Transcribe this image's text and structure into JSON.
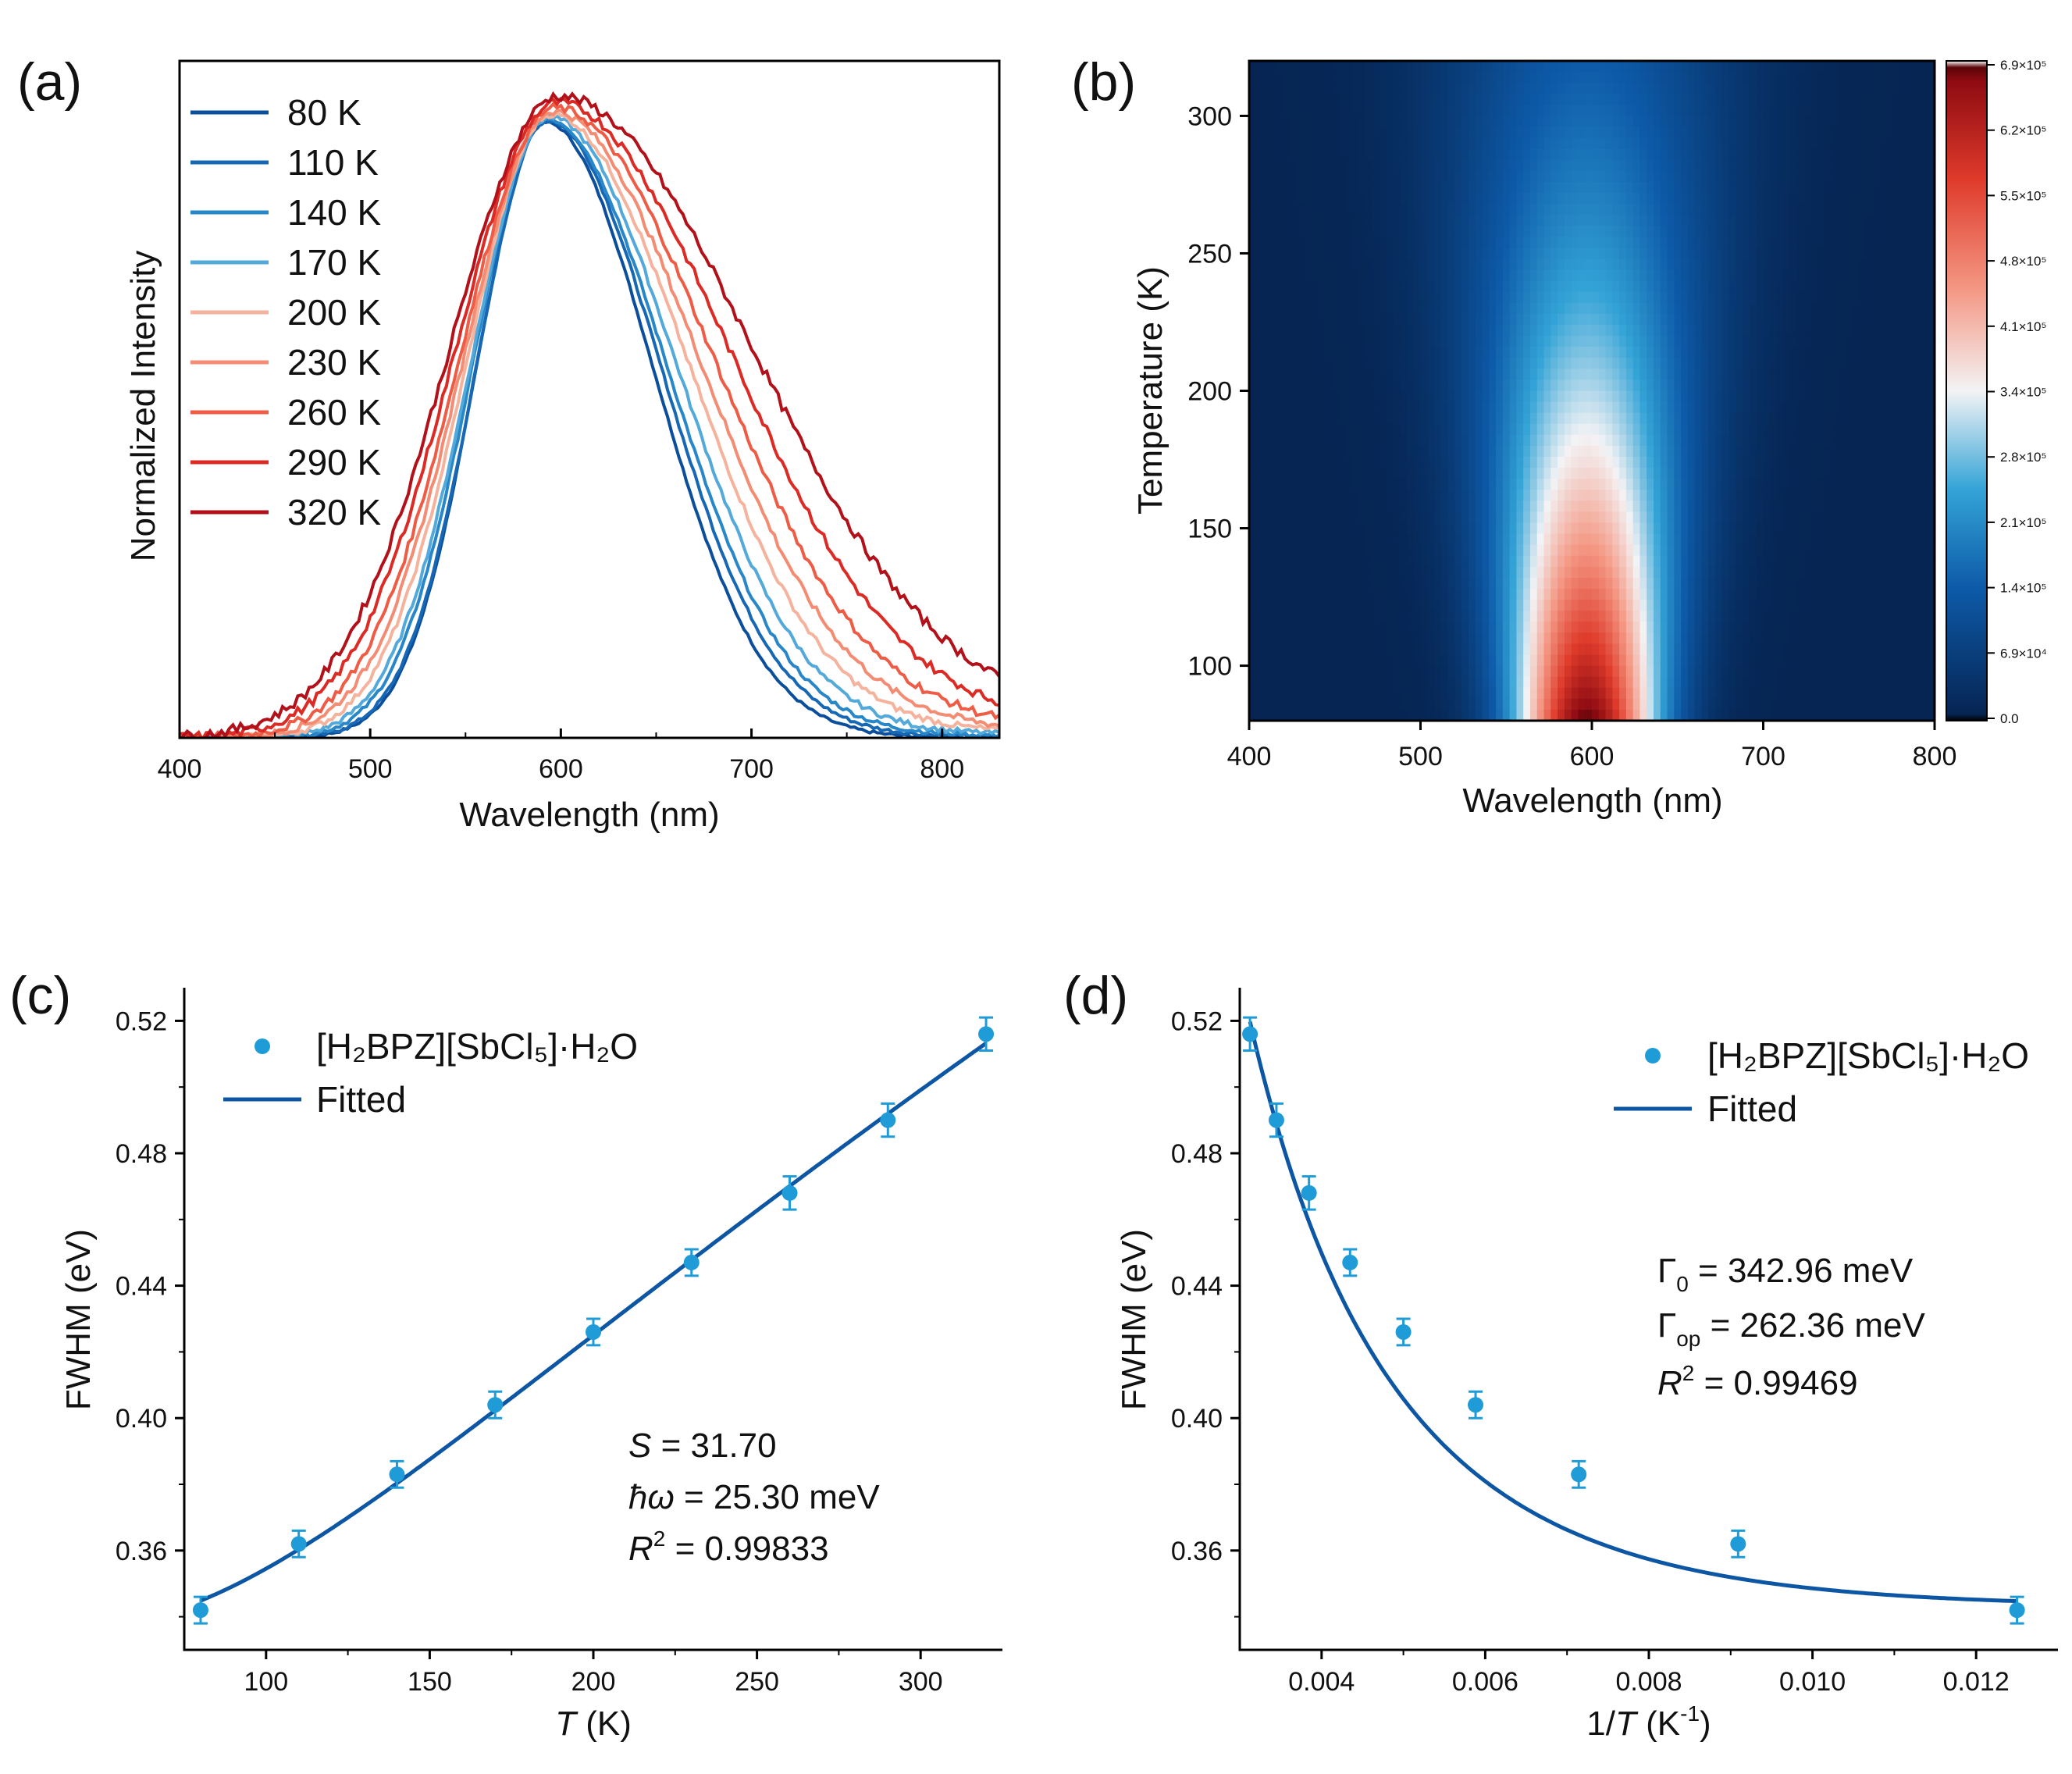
{
  "chart_data": [
    {
      "panel": "(a)",
      "type": "line",
      "title": "",
      "xlabel": "Wavelength (nm)",
      "ylabel": "Normalized Intensity",
      "xlim": [
        400,
        830
      ],
      "ylim": [
        0,
        1.1
      ],
      "xticks": [
        "400",
        "500",
        "600",
        "700",
        "800"
      ],
      "legend_position": "top-left",
      "series": [
        {
          "name": "80 K",
          "color": "#0b4f9c",
          "peak": 592,
          "wl": 36,
          "wr": 56,
          "tail": 0.0
        },
        {
          "name": "110 K",
          "color": "#1668b4",
          "peak": 593,
          "wl": 37,
          "wr": 59,
          "tail": 0.004
        },
        {
          "name": "140 K",
          "color": "#2887c8",
          "peak": 593,
          "wl": 39,
          "wr": 62,
          "tail": 0.008
        },
        {
          "name": "170 K",
          "color": "#52a9da",
          "peak": 594,
          "wl": 41,
          "wr": 66,
          "tail": 0.012
        },
        {
          "name": "200 K",
          "color": "#f5b39d",
          "peak": 595,
          "wl": 44,
          "wr": 71,
          "tail": 0.018
        },
        {
          "name": "230 K",
          "color": "#f48c73",
          "peak": 596,
          "wl": 47,
          "wr": 76,
          "tail": 0.025
        },
        {
          "name": "260 K",
          "color": "#ee5c45",
          "peak": 597,
          "wl": 50,
          "wr": 82,
          "tail": 0.033
        },
        {
          "name": "290 K",
          "color": "#dc2a24",
          "peak": 598,
          "wl": 54,
          "wr": 90,
          "tail": 0.045
        },
        {
          "name": "320 K",
          "color": "#b3111a",
          "peak": 599,
          "wl": 58,
          "wr": 100,
          "tail": 0.06
        }
      ]
    },
    {
      "panel": "(b)",
      "type": "heatmap",
      "xlabel": "Wavelength (nm)",
      "ylabel": "Temperature (K)",
      "xlim": [
        400,
        800
      ],
      "ylim": [
        80,
        320
      ],
      "xticks": [
        "400",
        "500",
        "600",
        "700",
        "800"
      ],
      "yticks": [
        "100",
        "150",
        "200",
        "250",
        "300"
      ],
      "colorbar_range": [
        0,
        690000
      ],
      "colorbar_ticks": [
        {
          "v": 0,
          "label": "0.0"
        },
        {
          "v": 69000,
          "label": "6.9×10⁴"
        },
        {
          "v": 138000,
          "label": "1.4×10⁵"
        },
        {
          "v": 207000,
          "label": "2.1×10⁵"
        },
        {
          "v": 276000,
          "label": "2.8×10⁵"
        },
        {
          "v": 345000,
          "label": "3.4×10⁵"
        },
        {
          "v": 414000,
          "label": "4.1×10⁵"
        },
        {
          "v": 483000,
          "label": "4.8×10⁵"
        },
        {
          "v": 552000,
          "label": "5.5×10⁵"
        },
        {
          "v": 621000,
          "label": "6.2×10⁵"
        },
        {
          "v": 690000,
          "label": "6.9×10⁵"
        }
      ],
      "peak_wavelength": 597,
      "max_intensity": 690000
    },
    {
      "panel": "(c)",
      "type": "scatter",
      "xlabel_var": "T",
      "xlabel_unit": " (K)",
      "ylabel": "FWHM (eV)",
      "xlim": [
        75,
        325
      ],
      "ylim": [
        0.33,
        0.53
      ],
      "xticks": [
        "100",
        "150",
        "200",
        "250",
        "300"
      ],
      "yticks": [
        "0.36",
        "0.40",
        "0.44",
        "0.48",
        "0.52"
      ],
      "x": [
        80,
        110,
        140,
        170,
        200,
        230,
        260,
        290,
        320
      ],
      "y": [
        0.342,
        0.362,
        0.383,
        0.404,
        0.426,
        0.447,
        0.468,
        0.49,
        0.516
      ],
      "err": [
        0.004,
        0.004,
        0.004,
        0.004,
        0.004,
        0.004,
        0.005,
        0.005,
        0.005
      ],
      "fit_params": {
        "S": 31.7,
        "hw_meV": 25.3
      },
      "legend": {
        "data_label": "[H₂BPZ][SbCl₅]·H₂O",
        "fit_label": "Fitted"
      },
      "annotations": {
        "s_var": "S",
        "s_val": " = 31.70",
        "hw_var": "ħω",
        "hw_val": " = 25.30 meV",
        "r2_var": "R",
        "r2_sup": "2",
        "r2_val": " = 0.99833"
      }
    },
    {
      "panel": "(d)",
      "type": "scatter",
      "xlabel_pre": "1/",
      "xlabel_var": "T",
      "xlabel_unit": " (K",
      "xlabel_sup": "-1",
      "xlabel_close": ")",
      "ylabel": "FWHM (eV)",
      "xlim": [
        0.003,
        0.013
      ],
      "ylim": [
        0.33,
        0.53
      ],
      "xticks": [
        "0.004",
        "0.006",
        "0.008",
        "0.010",
        "0.012"
      ],
      "yticks": [
        "0.36",
        "0.40",
        "0.44",
        "0.48",
        "0.52"
      ],
      "x": [
        0.003125,
        0.003448,
        0.003846,
        0.004348,
        0.005,
        0.005882,
        0.007143,
        0.009091,
        0.0125
      ],
      "y": [
        0.516,
        0.49,
        0.468,
        0.447,
        0.426,
        0.404,
        0.383,
        0.362,
        0.342
      ],
      "err": [
        0.005,
        0.005,
        0.005,
        0.004,
        0.004,
        0.004,
        0.004,
        0.004,
        0.004
      ],
      "fit_params": {
        "gamma0_meV": 342.96,
        "gammaop_meV": 262.36
      },
      "legend": {
        "data_label": "[H₂BPZ][SbCl₅]·H₂O",
        "fit_label": "Fitted"
      },
      "annotations": {
        "g0_sym": "Γ",
        "g0_sub": "0",
        "g0_val": "  = 342.96 meV",
        "gop_sym": "Γ",
        "gop_sub": "op",
        "gop_val": "  = 262.36 meV",
        "r2_var": "R",
        "r2_sup": "2",
        "r2_val": " = 0.99469"
      }
    }
  ],
  "colors": {
    "marker": "#1f9bd7",
    "fit_line": "#0d56a3"
  }
}
